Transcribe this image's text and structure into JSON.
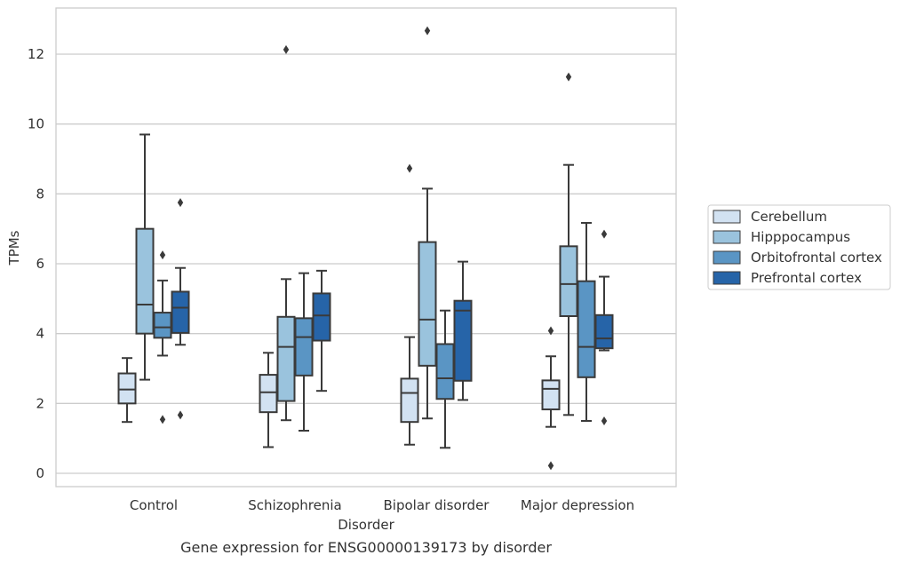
{
  "chart_data": {
    "type": "box",
    "title": "Gene expression for ENSG00000139173 by disorder",
    "xlabel": "Disorder",
    "ylabel": "TPMs",
    "ylim": [
      -0.4,
      13.3
    ],
    "yticks": [
      0,
      2,
      4,
      6,
      8,
      10,
      12
    ],
    "grid": true,
    "legend_position": "right",
    "categories": [
      "Control",
      "Schizophrenia",
      "Bipolar disorder",
      "Major depression"
    ],
    "series": [
      {
        "name": "Cerebellum",
        "color": "#d2e2f2",
        "boxes": [
          {
            "whislo": 1.47,
            "q1": 2.0,
            "med": 2.4,
            "q3": 2.86,
            "whishi": 3.3,
            "fliers": []
          },
          {
            "whislo": 0.75,
            "q1": 1.75,
            "med": 2.32,
            "q3": 2.82,
            "whishi": 3.45,
            "fliers": []
          },
          {
            "whislo": 0.82,
            "q1": 1.47,
            "med": 2.3,
            "q3": 2.71,
            "whishi": 3.9,
            "fliers": [
              8.73
            ]
          },
          {
            "whislo": 1.33,
            "q1": 1.83,
            "med": 2.42,
            "q3": 2.66,
            "whishi": 3.35,
            "fliers": [
              4.08,
              0.22
            ]
          }
        ]
      },
      {
        "name": "Hipppocampus",
        "color": "#9ac3dd",
        "boxes": [
          {
            "whislo": 2.68,
            "q1": 4.0,
            "med": 4.83,
            "q3": 7.0,
            "whishi": 9.7,
            "fliers": []
          },
          {
            "whislo": 1.52,
            "q1": 2.07,
            "med": 3.62,
            "q3": 4.48,
            "whishi": 5.56,
            "fliers": [
              12.13
            ]
          },
          {
            "whislo": 1.57,
            "q1": 3.08,
            "med": 4.4,
            "q3": 6.62,
            "whishi": 8.15,
            "fliers": [
              12.67
            ]
          },
          {
            "whislo": 1.67,
            "q1": 4.5,
            "med": 5.42,
            "q3": 6.5,
            "whishi": 8.83,
            "fliers": [
              11.35
            ]
          }
        ]
      },
      {
        "name": "Orbitofrontal cortex",
        "color": "#5a95c4",
        "boxes": [
          {
            "whislo": 3.37,
            "q1": 3.88,
            "med": 4.18,
            "q3": 4.6,
            "whishi": 5.52,
            "fliers": [
              6.25,
              1.54
            ]
          },
          {
            "whislo": 1.22,
            "q1": 2.8,
            "med": 3.9,
            "q3": 4.44,
            "whishi": 5.73,
            "fliers": []
          },
          {
            "whislo": 0.73,
            "q1": 2.13,
            "med": 2.72,
            "q3": 3.7,
            "whishi": 4.66,
            "fliers": []
          },
          {
            "whislo": 1.5,
            "q1": 2.75,
            "med": 3.62,
            "q3": 5.5,
            "whishi": 7.17,
            "fliers": []
          }
        ]
      },
      {
        "name": "Prefrontal cortex",
        "color": "#2664a8",
        "boxes": [
          {
            "whislo": 3.68,
            "q1": 4.02,
            "med": 4.74,
            "q3": 5.2,
            "whishi": 5.88,
            "fliers": [
              7.75,
              1.67
            ]
          },
          {
            "whislo": 2.36,
            "q1": 3.8,
            "med": 4.52,
            "q3": 5.15,
            "whishi": 5.8,
            "fliers": []
          },
          {
            "whislo": 2.1,
            "q1": 2.65,
            "med": 4.66,
            "q3": 4.94,
            "whishi": 6.06,
            "fliers": []
          },
          {
            "whislo": 3.52,
            "q1": 3.58,
            "med": 3.86,
            "q3": 4.53,
            "whishi": 5.63,
            "fliers": [
              6.85,
              1.5
            ]
          }
        ]
      }
    ]
  }
}
